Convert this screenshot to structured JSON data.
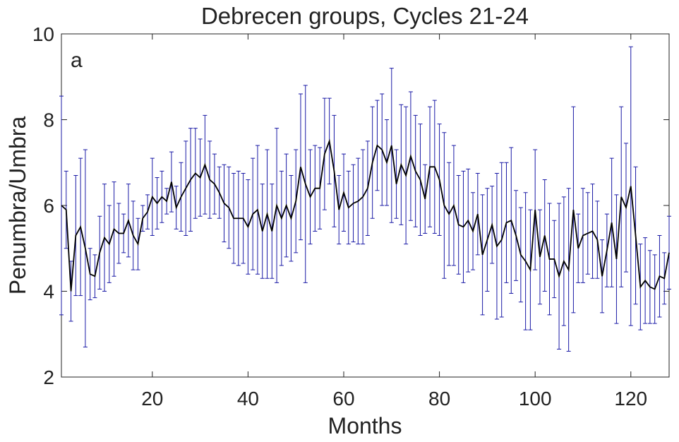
{
  "chart_data": {
    "type": "errorbar",
    "title": "Debrecen groups, Cycles 21-24",
    "annotation": "a",
    "xlabel": "Months",
    "ylabel": "Penumbra/Umbra",
    "x": [
      1,
      2,
      3,
      4,
      5,
      6,
      7,
      8,
      9,
      10,
      11,
      12,
      13,
      14,
      15,
      16,
      17,
      18,
      19,
      20,
      21,
      22,
      23,
      24,
      25,
      26,
      27,
      28,
      29,
      30,
      31,
      32,
      33,
      34,
      35,
      36,
      37,
      38,
      39,
      40,
      41,
      42,
      43,
      44,
      45,
      46,
      47,
      48,
      49,
      50,
      51,
      52,
      53,
      54,
      55,
      56,
      57,
      58,
      59,
      60,
      61,
      62,
      63,
      64,
      65,
      66,
      67,
      68,
      69,
      70,
      71,
      72,
      73,
      74,
      75,
      76,
      77,
      78,
      79,
      80,
      81,
      82,
      83,
      84,
      85,
      86,
      87,
      88,
      89,
      90,
      91,
      92,
      93,
      94,
      95,
      96,
      97,
      98,
      99,
      100,
      101,
      102,
      103,
      104,
      105,
      106,
      107,
      108,
      109,
      110,
      111,
      112,
      113,
      114,
      115,
      116,
      117,
      118,
      119,
      120,
      121,
      122,
      123,
      124,
      125,
      126,
      127,
      128
    ],
    "values": [
      6.0,
      5.9,
      4.0,
      5.3,
      5.5,
      5.0,
      4.4,
      4.35,
      4.9,
      5.25,
      5.1,
      5.45,
      5.35,
      5.35,
      5.65,
      5.3,
      5.1,
      5.7,
      5.85,
      6.2,
      6.05,
      6.2,
      6.1,
      6.55,
      5.95,
      6.2,
      6.4,
      6.6,
      6.75,
      6.65,
      6.95,
      6.6,
      6.5,
      6.3,
      6.05,
      5.95,
      5.7,
      5.7,
      5.7,
      5.5,
      5.8,
      5.9,
      5.4,
      5.8,
      5.4,
      6.0,
      5.7,
      6.0,
      5.7,
      6.1,
      6.9,
      6.5,
      6.2,
      6.4,
      6.4,
      7.2,
      7.5,
      6.8,
      5.9,
      6.3,
      5.95,
      6.05,
      6.1,
      6.2,
      6.4,
      7.0,
      7.4,
      7.3,
      7.0,
      7.4,
      6.5,
      6.95,
      6.7,
      7.15,
      6.8,
      6.6,
      6.15,
      6.9,
      6.9,
      6.6,
      6.0,
      5.8,
      6.0,
      5.55,
      5.5,
      5.65,
      5.4,
      5.8,
      4.85,
      5.2,
      5.55,
      5.05,
      5.2,
      5.6,
      5.65,
      5.3,
      4.85,
      4.7,
      4.5,
      5.9,
      4.8,
      5.3,
      4.75,
      4.75,
      4.35,
      4.7,
      4.5,
      5.9,
      5.0,
      5.3,
      5.35,
      5.4,
      5.2,
      4.35,
      4.95,
      5.6,
      4.75,
      6.2,
      5.95,
      6.45,
      5.3,
      4.1,
      4.25,
      4.1,
      4.05,
      4.35,
      4.3,
      4.9
    ],
    "errors": [
      2.55,
      0.9,
      0.7,
      1.4,
      1.6,
      2.3,
      0.6,
      0.5,
      0.85,
      1.25,
      0.9,
      1.1,
      0.7,
      0.45,
      0.85,
      0.8,
      0.6,
      0.3,
      0.4,
      0.9,
      0.6,
      0.6,
      0.3,
      0.7,
      0.5,
      0.8,
      1.1,
      1.2,
      1.05,
      0.9,
      1.15,
      0.9,
      0.7,
      0.6,
      0.9,
      0.95,
      1.05,
      1.1,
      1.05,
      1.1,
      1.3,
      1.5,
      1.1,
      1.5,
      1.1,
      1.8,
      1.1,
      1.2,
      1.0,
      1.2,
      1.7,
      2.3,
      1.1,
      1.0,
      0.95,
      1.3,
      1.0,
      1.3,
      0.8,
      0.9,
      0.85,
      0.9,
      1.0,
      1.1,
      1.1,
      1.3,
      1.05,
      1.3,
      1.0,
      1.8,
      0.8,
      1.4,
      1.6,
      1.5,
      1.3,
      1.3,
      0.8,
      1.4,
      1.55,
      1.3,
      1.7,
      1.2,
      1.4,
      1.15,
      1.3,
      1.2,
      0.9,
      0.95,
      1.4,
      1.2,
      0.9,
      1.7,
      1.8,
      1.4,
      1.7,
      1.05,
      1.1,
      1.6,
      1.4,
      1.4,
      1.1,
      1.3,
      1.3,
      0.9,
      1.7,
      1.5,
      1.9,
      2.4,
      0.8,
      1.1,
      0.95,
      1.1,
      0.9,
      0.85,
      0.85,
      1.5,
      1.5,
      2.1,
      1.5,
      3.25,
      1.6,
      1.0,
      1.0,
      0.85,
      0.8,
      0.95,
      0.6,
      0.85
    ],
    "color": "#000000",
    "error_color": "#1a1aa6",
    "xlim": [
      1,
      128
    ],
    "ylim": [
      2,
      10
    ],
    "xticks": [
      20,
      40,
      60,
      80,
      100,
      120
    ],
    "yticks": [
      2,
      4,
      6,
      8,
      10
    ]
  }
}
